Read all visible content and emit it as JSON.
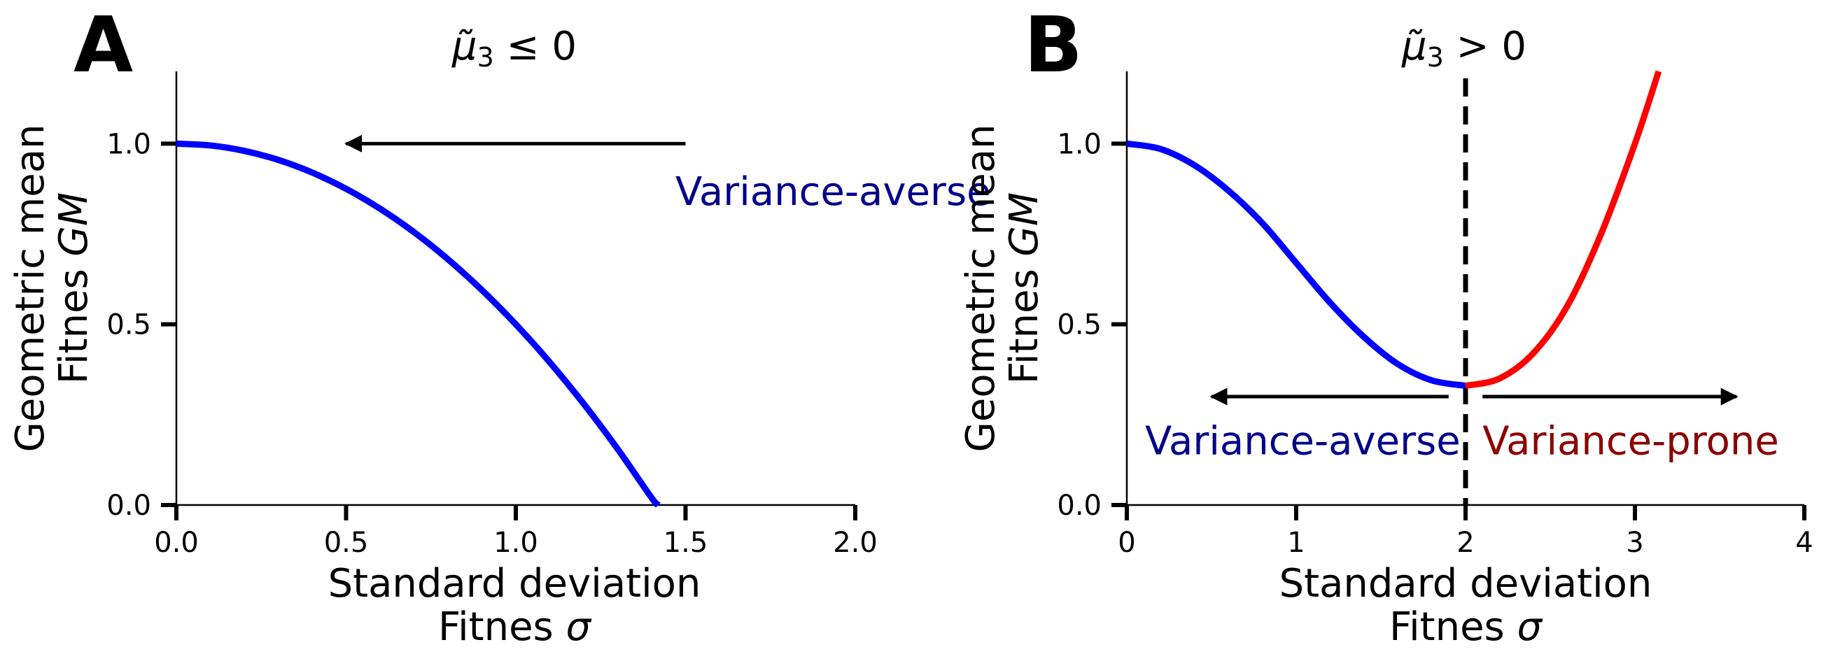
{
  "chart_data": [
    {
      "type": "line",
      "panel": "A",
      "title_prefix": "μ̃",
      "title_sub": "3",
      "title_suffix": " ≤ 0",
      "xlabel_line1": "Standard deviation",
      "xlabel_line2_prefix": "Fitnes ",
      "xlabel_line2_symbol": "σ",
      "ylabel_line1": "Geometric mean",
      "ylabel_line2_prefix": "Fitnes ",
      "ylabel_line2_symbol": "GM",
      "xlim": [
        0,
        2
      ],
      "ylim": [
        0,
        1.2
      ],
      "xticks": [
        0.0,
        0.5,
        1.0,
        1.5,
        2.0
      ],
      "xtick_labels": [
        "0.0",
        "0.5",
        "1.0",
        "1.5",
        "2.0"
      ],
      "yticks": [
        0.0,
        0.5,
        1.0
      ],
      "ytick_labels": [
        "0.0",
        "0.5",
        "1.0"
      ],
      "series": [
        {
          "name": "Variance-averse",
          "color": "#0000ff",
          "x": [
            0,
            0.1,
            0.2,
            0.3,
            0.4,
            0.5,
            0.6,
            0.7,
            0.8,
            0.9,
            1.0,
            1.1,
            1.2,
            1.3,
            1.4,
            1.42
          ],
          "y": [
            1.0,
            0.995,
            0.98,
            0.955,
            0.92,
            0.875,
            0.82,
            0.755,
            0.68,
            0.595,
            0.5,
            0.395,
            0.28,
            0.155,
            0.02,
            0.0
          ]
        }
      ],
      "annotations": [
        {
          "text": "Variance-averse",
          "color": "#00008b",
          "x": 1.47,
          "y": 0.83
        },
        {
          "type": "arrow",
          "color": "#000000",
          "from": [
            1.5,
            1.0
          ],
          "to": [
            0.5,
            1.0
          ]
        }
      ]
    },
    {
      "type": "line",
      "panel": "B",
      "title_prefix": "μ̃",
      "title_sub": "3",
      "title_suffix": " > 0",
      "xlabel_line1": "Standard deviation",
      "xlabel_line2_prefix": "Fitnes ",
      "xlabel_line2_symbol": "σ",
      "ylabel_line1": "Geometric mean",
      "ylabel_line2_prefix": "Fitnes ",
      "ylabel_line2_symbol": "GM",
      "xlim": [
        0,
        4
      ],
      "ylim": [
        0,
        1.2
      ],
      "xticks": [
        0,
        1,
        2,
        3,
        4
      ],
      "xtick_labels": [
        "0",
        "1",
        "2",
        "3",
        "4"
      ],
      "yticks": [
        0.0,
        0.5,
        1.0
      ],
      "ytick_labels": [
        "0.0",
        "0.5",
        "1.0"
      ],
      "vline": {
        "x": 2,
        "color": "#000000",
        "style": "dashed"
      },
      "series": [
        {
          "name": "Variance-averse",
          "color": "#0000ff",
          "x": [
            0,
            0.2,
            0.4,
            0.6,
            0.8,
            1.0,
            1.2,
            1.4,
            1.6,
            1.8,
            2.0
          ],
          "y": [
            1.0,
            0.985,
            0.94,
            0.87,
            0.78,
            0.67,
            0.56,
            0.465,
            0.39,
            0.345,
            0.33
          ]
        },
        {
          "name": "Variance-prone",
          "color": "#ff0000",
          "x": [
            2.0,
            2.2,
            2.4,
            2.6,
            2.8,
            3.0,
            3.14
          ],
          "y": [
            0.33,
            0.35,
            0.42,
            0.55,
            0.75,
            1.0,
            1.2
          ]
        }
      ],
      "annotations": [
        {
          "text": "Variance-averse",
          "color": "#00008b",
          "x": 1.97,
          "y": 0.14
        },
        {
          "text": "Variance-prone",
          "color": "#8b0000",
          "x": 2.1,
          "y": 0.14
        },
        {
          "type": "arrow",
          "color": "#000000",
          "from": [
            1.9,
            0.3
          ],
          "to": [
            0.5,
            0.3
          ]
        },
        {
          "type": "arrow",
          "color": "#000000",
          "from": [
            2.1,
            0.3
          ],
          "to": [
            3.6,
            0.3
          ]
        }
      ]
    }
  ]
}
